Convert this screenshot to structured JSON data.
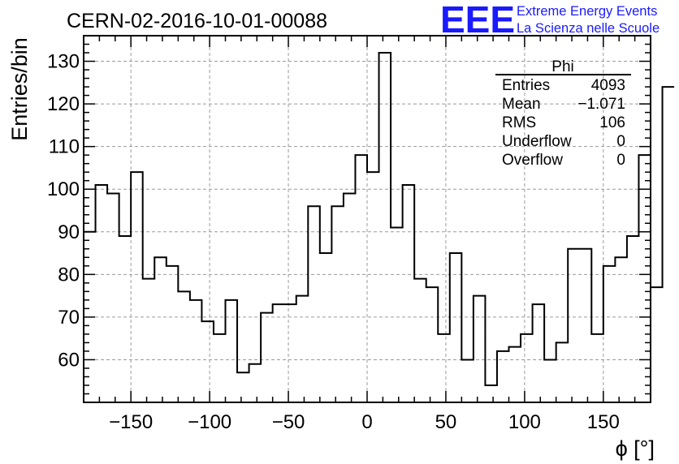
{
  "title": "CERN-02-2016-10-01-00088",
  "logo": {
    "mark": "EEE",
    "line1": "Extreme Energy Events",
    "line2": "La Scienza nelle Scuole",
    "color": "#1a1aff"
  },
  "stats": {
    "name": "Phi",
    "rows": [
      {
        "label": "Entries",
        "value": "4093"
      },
      {
        "label": "Mean",
        "value": "−1.071"
      },
      {
        "label": "RMS",
        "value": "106"
      },
      {
        "label": "Underflow",
        "value": "0"
      },
      {
        "label": "Overflow",
        "value": "0"
      }
    ]
  },
  "chart_data": {
    "type": "histogram",
    "xlabel": "ϕ [°]",
    "ylabel": "Entries/bin",
    "xlim": [
      -180,
      180
    ],
    "ylim": [
      50,
      136
    ],
    "xticks": [
      -150,
      -100,
      -50,
      0,
      50,
      100,
      150
    ],
    "xtick_labels": [
      "−150",
      "−100",
      "−50",
      "0",
      "50",
      "100",
      "150"
    ],
    "yticks": [
      60,
      70,
      80,
      90,
      100,
      110,
      120,
      130
    ],
    "grid": true,
    "bin_width": 7.5,
    "bin_start": -180,
    "values": [
      90,
      101,
      99,
      89,
      104,
      79,
      84,
      82,
      76,
      74,
      69,
      66,
      74,
      57,
      59,
      71,
      73,
      73,
      75,
      96,
      85,
      96,
      99,
      108,
      104,
      132,
      91,
      101,
      79,
      77,
      66,
      85,
      60,
      75,
      54,
      62,
      63,
      66,
      73,
      60,
      64,
      86,
      86,
      66,
      82,
      84,
      89,
      108,
      77,
      124
    ]
  }
}
